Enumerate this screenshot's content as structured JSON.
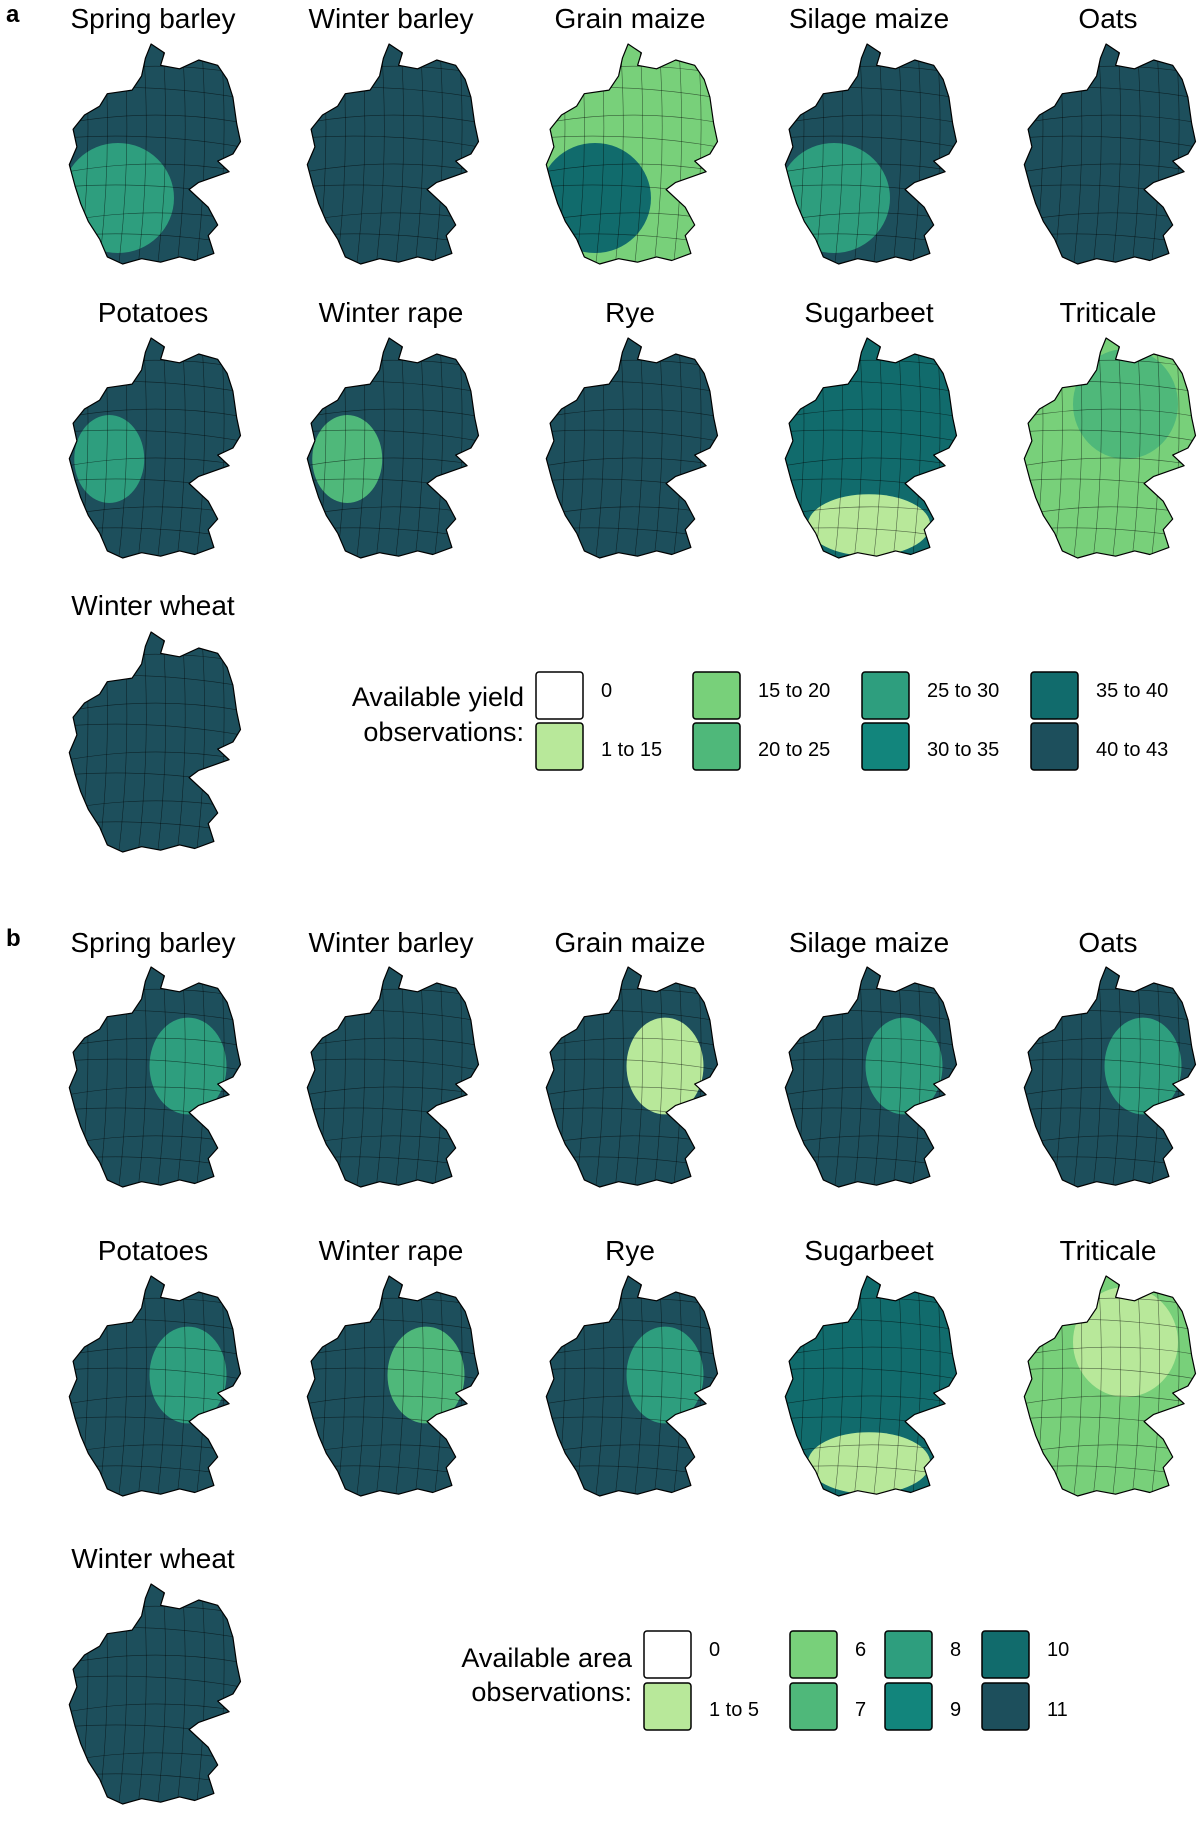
{
  "panels": [
    {
      "label": "a",
      "maps": [
        "Spring barley",
        "Winter barley",
        "Grain maize",
        "Silage maize",
        "Oats",
        "Potatoes",
        "Winter rape",
        "Rye",
        "Sugarbeet",
        "Triticale",
        "Winter wheat"
      ],
      "legend": {
        "title_lines": [
          "Available yield",
          "observations:"
        ],
        "items": [
          {
            "label": "0",
            "color": "#ffffff"
          },
          {
            "label": "1 to 15",
            "color": "#b8e89a"
          },
          {
            "label": "15 to 20",
            "color": "#78d07a"
          },
          {
            "label": "20 to 25",
            "color": "#4fb87a"
          },
          {
            "label": "25 to 30",
            "color": "#2e9e7e"
          },
          {
            "label": "30 to 35",
            "color": "#12857c"
          },
          {
            "label": "35 to 40",
            "color": "#116b6c"
          },
          {
            "label": "40 to 43",
            "color": "#1d4f5c"
          }
        ]
      }
    },
    {
      "label": "b",
      "maps": [
        "Spring barley",
        "Winter barley",
        "Grain maize",
        "Silage maize",
        "Oats",
        "Potatoes",
        "Winter rape",
        "Rye",
        "Sugarbeet",
        "Triticale",
        "Winter wheat"
      ],
      "legend": {
        "title_lines": [
          "Available area",
          "observations:"
        ],
        "items": [
          {
            "label": "0",
            "color": "#ffffff"
          },
          {
            "label": "1 to 5",
            "color": "#b8e89a"
          },
          {
            "label": "6",
            "color": "#78d07a"
          },
          {
            "label": "7",
            "color": "#4fb87a"
          },
          {
            "label": "8",
            "color": "#2e9e7e"
          },
          {
            "label": "9",
            "color": "#12857c"
          },
          {
            "label": "10",
            "color": "#116b6c"
          },
          {
            "label": "11",
            "color": "#1d4f5c"
          }
        ]
      }
    }
  ]
}
